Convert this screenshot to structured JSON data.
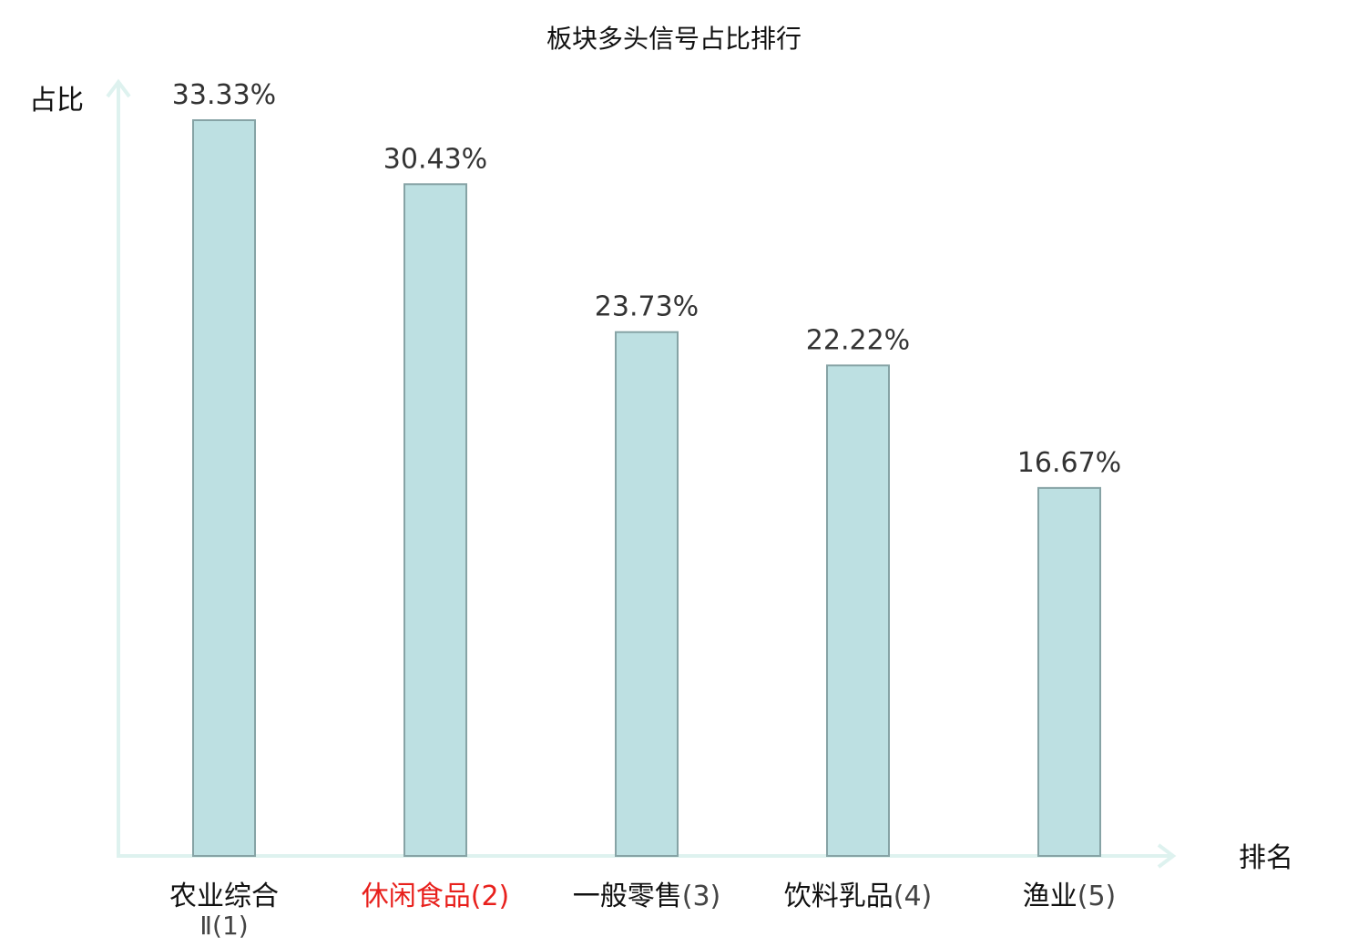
{
  "chart_data": {
    "type": "bar",
    "title": "板块多头信号占比排行",
    "xlabel": "排名",
    "ylabel": "占比",
    "categories": [
      {
        "line1": "农业综合",
        "line2": "Ⅱ(1)",
        "name": "农业综合",
        "rank": "(1)",
        "color": "#111111"
      },
      {
        "line1": "休闲食品",
        "line2": "",
        "name": "休闲食品",
        "rank": "(2)",
        "color": "#e8201c"
      },
      {
        "line1": "一般零售",
        "line2": "",
        "name": "一般零售",
        "rank": "(3)",
        "color": "#111111"
      },
      {
        "line1": "饮料乳品",
        "line2": "",
        "name": "饮料乳品",
        "rank": "(4)",
        "color": "#111111"
      },
      {
        "line1": "渔业",
        "line2": "",
        "name": "渔业",
        "rank": "(5)",
        "color": "#111111"
      }
    ],
    "values": [
      33.33,
      30.43,
      23.73,
      22.22,
      16.67
    ],
    "value_labels": [
      "33.33%",
      "30.43%",
      "23.73%",
      "22.22%",
      "16.67%"
    ],
    "ylim": [
      0,
      33.33
    ],
    "grid": false,
    "legend": "none",
    "colors": {
      "bar_fill": "#bde0e2",
      "bar_stroke": "#86a3a5",
      "axis": "#def2ef",
      "highlight_label": "#e8201c"
    }
  }
}
